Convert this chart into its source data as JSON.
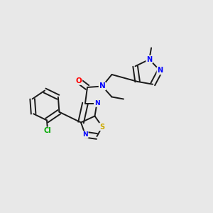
{
  "background_color": "#e8e8e8",
  "bond_color": "#1a1a1a",
  "atom_colors": {
    "N": "#0000ff",
    "O": "#ff0000",
    "S": "#ccaa00",
    "Cl": "#00aa00",
    "C": "#1a1a1a"
  },
  "figsize": [
    3.0,
    3.0
  ],
  "dpi": 100
}
